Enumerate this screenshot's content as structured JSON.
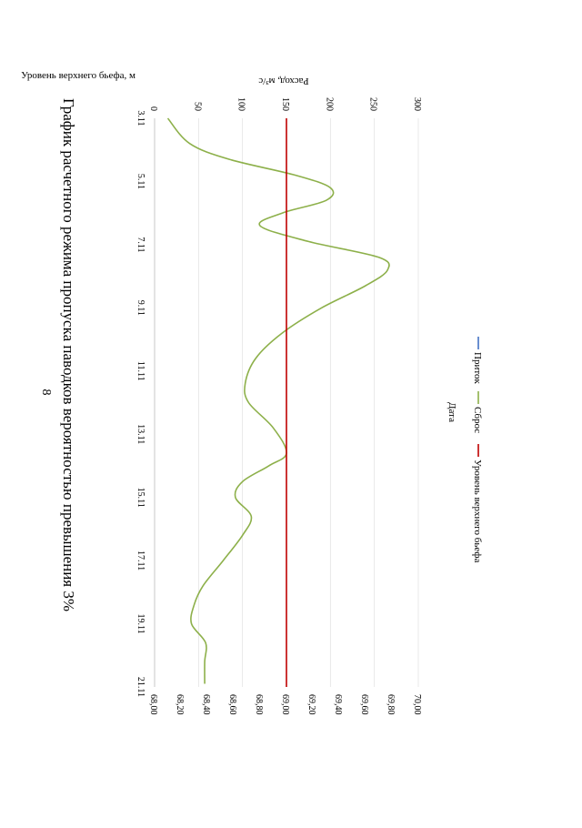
{
  "page": {
    "number": "8"
  },
  "chart_data": {
    "type": "line",
    "title": "График расчетного режима пропуска паводков вероятностью превышения 3%",
    "xlabel": "Дата",
    "ylabel": "Расход, м³/с",
    "y2label": "Уровень верхнего бьефа, м",
    "x_ticks": [
      "3.11",
      "5.11",
      "7.11",
      "9.11",
      "11.11",
      "13.11",
      "15.11",
      "17.11",
      "19.11",
      "21.11"
    ],
    "xlim": [
      0,
      18
    ],
    "ylim": [
      0,
      300
    ],
    "y_ticks": [
      "0",
      "50",
      "100",
      "150",
      "200",
      "250",
      "300"
    ],
    "y2lim": [
      68.0,
      70.0
    ],
    "y2_ticks": [
      "68,00",
      "68,20",
      "68,40",
      "68,60",
      "68,80",
      "69,00",
      "69,20",
      "69,40",
      "69,60",
      "69,80",
      "70,00"
    ],
    "grid": true,
    "legend_position": "bottom",
    "series": [
      {
        "name": "Приток",
        "color": "#4472c4",
        "axis": "left",
        "x": [],
        "y": []
      },
      {
        "name": "Сброс",
        "color": "#8db04a",
        "axis": "left",
        "x": [
          0,
          0.8,
          1.3,
          1.8,
          2.2,
          2.6,
          3.0,
          3.4,
          3.9,
          4.4,
          4.8,
          5.3,
          6.0,
          6.8,
          7.6,
          8.4,
          9.0,
          9.8,
          10.6,
          11.0,
          11.5,
          12.0,
          12.6,
          13.2,
          14.0,
          14.8,
          15.4,
          16.0,
          16.6,
          17.2,
          17.9
        ],
        "y": [
          15,
          40,
          85,
          160,
          200,
          195,
          145,
          120,
          175,
          255,
          265,
          240,
          190,
          145,
          115,
          103,
          107,
          135,
          150,
          130,
          100,
          92,
          110,
          100,
          78,
          55,
          45,
          42,
          58,
          57,
          57
        ]
      },
      {
        "name": "Уровень верхнего бьефа",
        "color": "#c00000",
        "axis": "right",
        "x": [
          0,
          18
        ],
        "y": [
          69.0,
          69.0
        ]
      }
    ]
  }
}
